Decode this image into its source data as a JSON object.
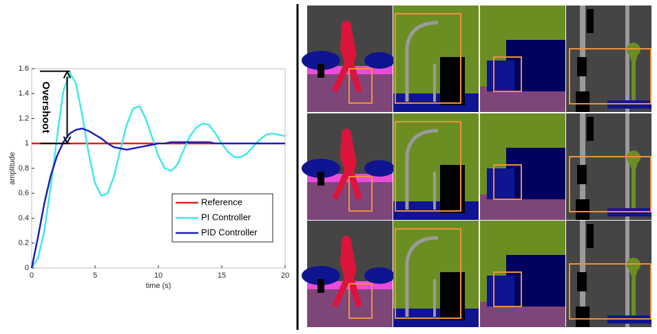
{
  "chart_data": {
    "type": "line",
    "x": [
      0,
      0.5,
      1,
      1.5,
      2,
      2.5,
      3,
      3.5,
      4,
      4.5,
      5,
      5.5,
      6,
      6.5,
      7,
      7.5,
      8,
      8.5,
      9,
      9.5,
      10,
      10.5,
      11,
      11.5,
      12,
      12.5,
      13,
      13.5,
      14,
      14.5,
      15,
      15.5,
      16,
      16.5,
      17,
      17.5,
      18,
      18.5,
      19,
      19.5,
      20
    ],
    "series": [
      {
        "name": "Reference",
        "color": "#e8201c",
        "values": [
          1,
          1,
          1,
          1,
          1,
          1,
          1,
          1,
          1,
          1,
          1,
          1,
          1,
          1,
          1,
          1,
          1,
          1,
          1,
          1,
          1,
          1,
          1,
          1,
          1,
          1,
          1,
          1,
          1,
          1,
          1,
          1,
          1,
          1,
          1,
          1,
          1,
          1,
          1,
          1,
          1
        ]
      },
      {
        "name": "PI Controller",
        "color": "#3fe8ec",
        "values": [
          0,
          0.08,
          0.3,
          0.65,
          1.05,
          1.42,
          1.57,
          1.48,
          1.22,
          0.92,
          0.68,
          0.58,
          0.6,
          0.74,
          0.95,
          1.15,
          1.28,
          1.3,
          1.2,
          1.05,
          0.9,
          0.8,
          0.78,
          0.83,
          0.95,
          1.06,
          1.13,
          1.16,
          1.15,
          1.08,
          1,
          0.93,
          0.89,
          0.89,
          0.92,
          0.98,
          1.03,
          1.07,
          1.08,
          1.07,
          1.06
        ]
      },
      {
        "name": "PID Controller",
        "color": "#1f1fb4",
        "values": [
          0,
          0.25,
          0.52,
          0.74,
          0.9,
          1.01,
          1.08,
          1.11,
          1.12,
          1.1,
          1.07,
          1.04,
          1,
          0.97,
          0.96,
          0.95,
          0.96,
          0.97,
          0.98,
          0.99,
          1,
          1,
          1.01,
          1.01,
          1.01,
          1.01,
          1.01,
          1.01,
          1.01,
          1,
          1,
          1,
          1,
          1,
          1,
          1,
          1,
          1,
          1,
          1,
          1
        ]
      }
    ],
    "xlabel": "time (s)",
    "ylabel": "amplitude",
    "xlim": [
      0,
      20
    ],
    "ylim": [
      0,
      1.6
    ],
    "xticks": [
      0,
      5,
      10,
      15,
      20
    ],
    "yticks": [
      0,
      0.2,
      0.4,
      0.6,
      0.8,
      1,
      1.2,
      1.4,
      1.6
    ],
    "grid": false,
    "legend": "southeast",
    "annotation": {
      "text": "Overshoot",
      "x": 2.8,
      "from": 1,
      "to": 1.58
    }
  }
}
